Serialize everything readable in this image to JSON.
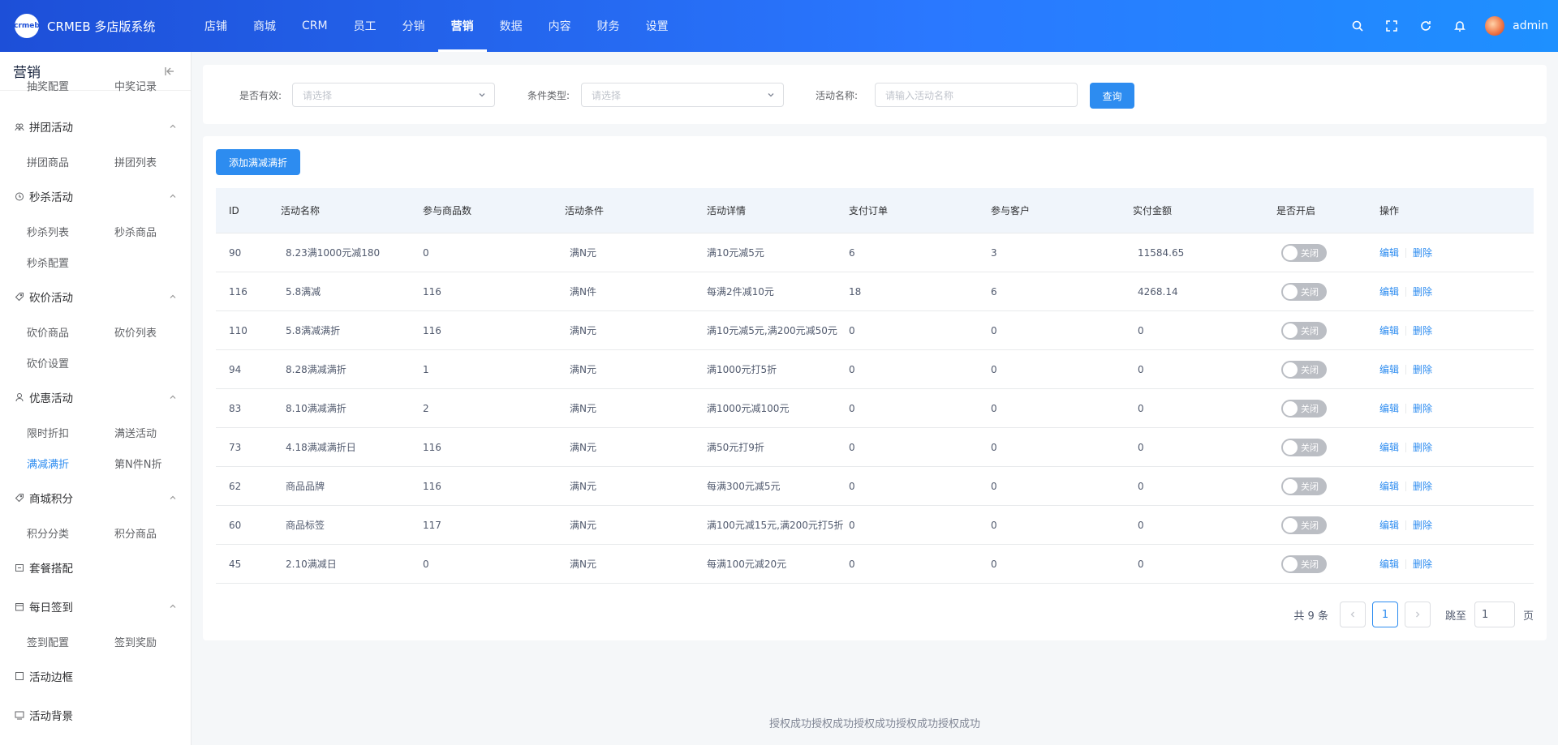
{
  "app": {
    "logo_text": "crmeb",
    "title": "CRMEB 多店版系统"
  },
  "topnav": [
    {
      "label": "店铺",
      "active": false
    },
    {
      "label": "商城",
      "active": false
    },
    {
      "label": "CRM",
      "active": false
    },
    {
      "label": "员工",
      "active": false
    },
    {
      "label": "分销",
      "active": false
    },
    {
      "label": "营销",
      "active": true
    },
    {
      "label": "数据",
      "active": false
    },
    {
      "label": "内容",
      "active": false
    },
    {
      "label": "财务",
      "active": false
    },
    {
      "label": "设置",
      "active": false
    }
  ],
  "user": {
    "name": "admin"
  },
  "sidebar": {
    "title": "营销",
    "cut_items": [
      "抽奖配置",
      "中奖记录"
    ],
    "groups": [
      {
        "label": "拼团活动",
        "icon": "group-icon",
        "items": [
          "拼团商品",
          "拼团列表"
        ]
      },
      {
        "label": "秒杀活动",
        "icon": "clock-icon",
        "items": [
          "秒杀列表",
          "秒杀商品",
          "秒杀配置"
        ]
      },
      {
        "label": "砍价活动",
        "icon": "tag-icon",
        "items": [
          "砍价商品",
          "砍价列表",
          "砍价设置"
        ]
      },
      {
        "label": "优惠活动",
        "icon": "user-icon",
        "items": [
          "限时折扣",
          "满送活动",
          "满减满折",
          "第N件N折"
        ]
      },
      {
        "label": "商城积分",
        "icon": "tag-icon",
        "items": [
          "积分分类",
          "积分商品"
        ]
      },
      {
        "label": "套餐搭配",
        "icon": "package-icon",
        "items": []
      },
      {
        "label": "每日签到",
        "icon": "calendar-icon",
        "items": [
          "签到配置",
          "签到奖励"
        ]
      },
      {
        "label": "活动边框",
        "icon": "frame-icon",
        "items": []
      },
      {
        "label": "活动背景",
        "icon": "background-icon",
        "items": []
      }
    ],
    "active_item": "满减满折"
  },
  "filter": {
    "valid_label": "是否有效:",
    "valid_placeholder": "请选择",
    "type_label": "条件类型:",
    "type_placeholder": "请选择",
    "name_label": "活动名称:",
    "name_placeholder": "请输入活动名称",
    "search_button": "查询"
  },
  "add_button": "添加满减满折",
  "table": {
    "columns": [
      "ID",
      "活动名称",
      "参与商品数",
      "活动条件",
      "活动详情",
      "支付订单",
      "参与客户",
      "实付金额",
      "是否开启",
      "操作"
    ],
    "rows": [
      {
        "id": "90",
        "name": "8.23满1000元减180",
        "goods": "0",
        "condition": "满N元",
        "detail": "满10元减5元",
        "orders": "6",
        "customers": "3",
        "amount": "11584.65",
        "status": "关闭"
      },
      {
        "id": "116",
        "name": "5.8满减",
        "goods": "116",
        "condition": "满N件",
        "detail": "每满2件减10元",
        "orders": "18",
        "customers": "6",
        "amount": "4268.14",
        "status": "关闭"
      },
      {
        "id": "110",
        "name": "5.8满减满折",
        "goods": "116",
        "condition": "满N元",
        "detail": "满10元减5元,满200元减50元",
        "orders": "0",
        "customers": "0",
        "amount": "0",
        "status": "关闭"
      },
      {
        "id": "94",
        "name": "8.28满减满折",
        "goods": "1",
        "condition": "满N元",
        "detail": "满1000元打5折",
        "orders": "0",
        "customers": "0",
        "amount": "0",
        "status": "关闭"
      },
      {
        "id": "83",
        "name": "8.10满减满折",
        "goods": "2",
        "condition": "满N元",
        "detail": "满1000元减100元",
        "orders": "0",
        "customers": "0",
        "amount": "0",
        "status": "关闭"
      },
      {
        "id": "73",
        "name": "4.18满减满折日",
        "goods": "116",
        "condition": "满N元",
        "detail": "满50元打9折",
        "orders": "0",
        "customers": "0",
        "amount": "0",
        "status": "关闭"
      },
      {
        "id": "62",
        "name": "商品品牌",
        "goods": "116",
        "condition": "满N元",
        "detail": "每满300元减5元",
        "orders": "0",
        "customers": "0",
        "amount": "0",
        "status": "关闭"
      },
      {
        "id": "60",
        "name": "商品标签",
        "goods": "117",
        "condition": "满N元",
        "detail": "满100元减15元,满200元打5折",
        "orders": "0",
        "customers": "0",
        "amount": "0",
        "status": "关闭"
      },
      {
        "id": "45",
        "name": "2.10满减日",
        "goods": "0",
        "condition": "满N元",
        "detail": "每满100元减20元",
        "orders": "0",
        "customers": "0",
        "amount": "0",
        "status": "关闭"
      }
    ],
    "edit_label": "编辑",
    "delete_label": "删除"
  },
  "pagination": {
    "total_text": "共 9 条",
    "current_page": "1",
    "jump_label": "跳至",
    "jump_value": "1",
    "page_unit": "页"
  },
  "footer": "授权成功授权成功授权成功授权成功授权成功",
  "colors": {
    "primary": "#2d8cf0",
    "header_start": "#1d4fd8",
    "header_end": "#1e90ff",
    "toggle_off": "#bbbec4"
  }
}
